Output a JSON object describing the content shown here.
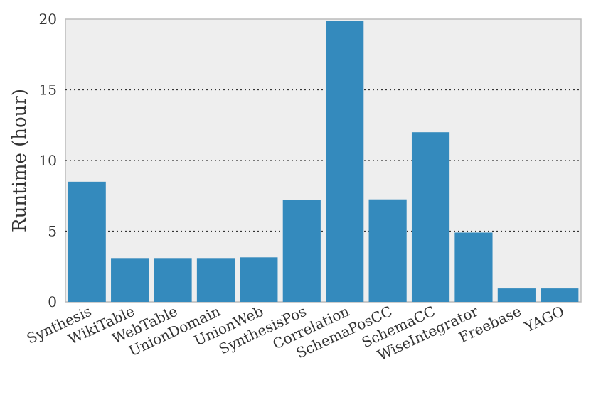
{
  "chart_data": {
    "type": "bar",
    "categories": [
      "Synthesis",
      "WikiTable",
      "WebTable",
      "UnionDomain",
      "UnionWeb",
      "SynthesisPos",
      "Correlation",
      "SchemaPosCC",
      "SchemaCC",
      "WiseIntegrator",
      "Freebase",
      "YAGO"
    ],
    "values": [
      8.5,
      3.1,
      3.1,
      3.1,
      3.15,
      7.2,
      19.9,
      7.25,
      12.0,
      4.9,
      0.95,
      0.95
    ],
    "title": "",
    "xlabel": "",
    "ylabel": "Runtime (hour)",
    "ylim": [
      0,
      20
    ],
    "yticks": [
      0,
      5,
      10,
      15,
      20
    ],
    "grid": "horizontal dotted",
    "bar_color": "#348abd",
    "background_color": "#eeeeee"
  }
}
